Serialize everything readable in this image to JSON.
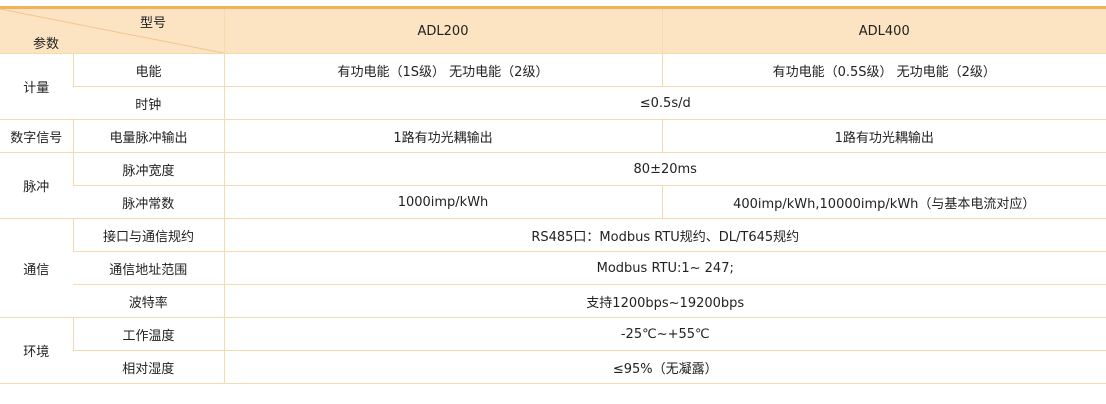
{
  "header": {
    "model_label": "型号",
    "param_label": "参数",
    "col_a": "ADL200",
    "col_b": "ADL400"
  },
  "groups": {
    "metering": "计量",
    "digital": "数字信号",
    "pulse": "脉冲",
    "comm": "通信",
    "env": "环境"
  },
  "rows": [
    {
      "param": "电能",
      "a": "有功电能（1S级） 无功电能（2级）",
      "b": "有功电能（0.5S级） 无功电能（2级）"
    },
    {
      "param": "时钟",
      "value": "≤0.5s/d"
    },
    {
      "param": "电量脉冲输出",
      "a": "1路有功光耦输出",
      "b": "1路有功光耦输出"
    },
    {
      "param": "脉冲宽度",
      "value": "80±20ms"
    },
    {
      "param": "脉冲常数",
      "a": "1000imp/kWh",
      "b": "400imp/kWh,10000imp/kWh（与基本电流对应）"
    },
    {
      "param": "接口与通信规约",
      "value": "RS485口：Modbus RTU规约、DL/T645规约"
    },
    {
      "param": "通信地址范围",
      "value": "Modbus RTU:1~ 247;"
    },
    {
      "param": "波特率",
      "value": "支持1200bps~19200bps"
    },
    {
      "param": "工作温度",
      "value": "-25℃~+55℃"
    },
    {
      "param": "相对湿度",
      "value": "≤95%（无凝露）"
    }
  ],
  "colors": {
    "header_bg": "#fce3c2",
    "border": "#f6d9ae",
    "top_border": "#f2b25a"
  }
}
